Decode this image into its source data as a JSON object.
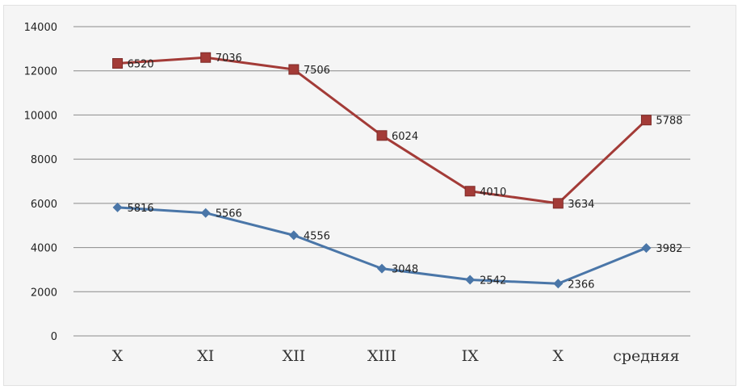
{
  "chart_data": {
    "type": "line",
    "categories": [
      "X",
      "XI",
      "XII",
      "XIII",
      "IX",
      "X",
      "средняя"
    ],
    "ylim": [
      0,
      14000
    ],
    "yticks": [
      0,
      2000,
      4000,
      6000,
      8000,
      10000,
      12000,
      14000
    ],
    "ytick_labels": [
      "0",
      "2000",
      "4000",
      "6000",
      "8000",
      "10000",
      "12000",
      "14000"
    ],
    "grid": true,
    "legend": "none",
    "series": [
      {
        "values": [
          12336,
          12602,
          12062,
          9072,
          6552,
          6000,
          9770
        ],
        "data_labels": [
          "6520",
          "7036",
          "7506",
          "6024",
          "4010",
          "3634",
          "5788"
        ],
        "color": "#a33b37",
        "marker": "square"
      },
      {
        "values": [
          5816,
          5566,
          4556,
          3048,
          2542,
          2366,
          3982
        ],
        "data_labels": [
          "5816",
          "5566",
          "4556",
          "3048",
          "2542",
          "2366",
          "3982"
        ],
        "color": "#4a76a8",
        "marker": "diamond"
      }
    ]
  }
}
